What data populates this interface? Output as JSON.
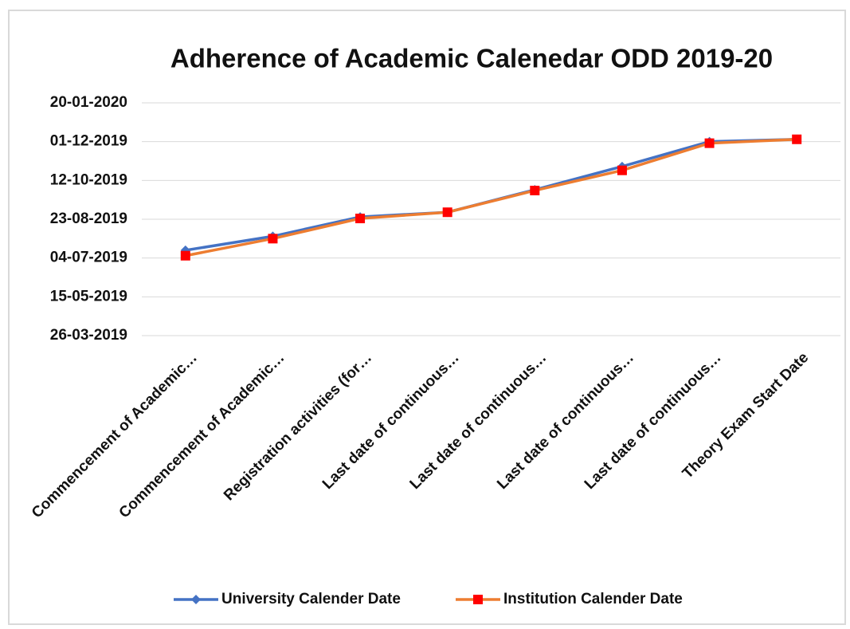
{
  "chart_data": {
    "type": "line",
    "title": "Adherence of Academic Calenedar ODD 2019-20",
    "categories": [
      "Commencement of Academic…",
      "Commencement of Academic…",
      "Registration activities (for…",
      "Last date of continuous…",
      "Last date of continuous…",
      "Last date of continuous…",
      "Last date of continuous…",
      "Theory Exam Start Date"
    ],
    "series": [
      {
        "name": "University Calender Date",
        "color": "#4472c4",
        "marker": "diamond",
        "values": [
          "2019-07-14",
          "2019-08-01",
          "2019-08-26",
          "2019-09-01",
          "2019-09-30",
          "2019-10-30",
          "2019-12-01",
          "2019-12-04"
        ]
      },
      {
        "name": "Institution Calender Date",
        "color": "#ed7d31",
        "marker_color": "#ff0000",
        "marker": "square",
        "values": [
          "2019-07-07",
          "2019-07-29",
          "2019-08-24",
          "2019-09-01",
          "2019-09-29",
          "2019-10-25",
          "2019-11-29",
          "2019-12-04"
        ]
      }
    ],
    "ylim": [
      "2019-03-26",
      "2020-01-20"
    ],
    "yticks": [
      {
        "value": "2019-03-26",
        "label": "26-03-2019"
      },
      {
        "value": "2019-05-15",
        "label": "15-05-2019"
      },
      {
        "value": "2019-07-04",
        "label": "04-07-2019"
      },
      {
        "value": "2019-08-23",
        "label": "23-08-2019"
      },
      {
        "value": "2019-10-12",
        "label": "12-10-2019"
      },
      {
        "value": "2019-12-01",
        "label": "01-12-2019"
      },
      {
        "value": "2020-01-20",
        "label": "20-01-2020"
      }
    ],
    "grid": true,
    "legend": "bottom"
  }
}
